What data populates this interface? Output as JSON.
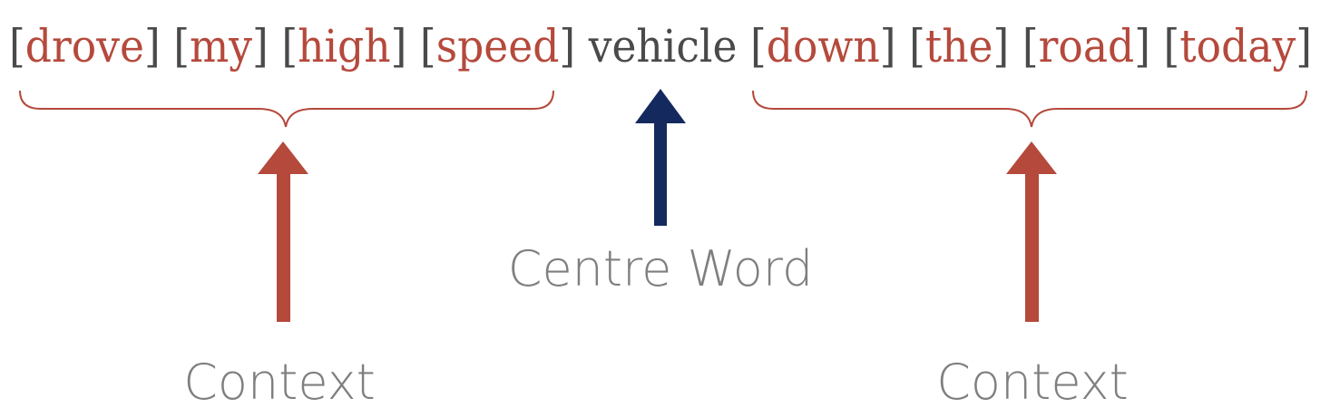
{
  "sentence": {
    "tokens": [
      {
        "text": "drove",
        "role": "context"
      },
      {
        "text": "my",
        "role": "context"
      },
      {
        "text": "high",
        "role": "context"
      },
      {
        "text": "speed",
        "role": "context"
      },
      {
        "text": "vehicle",
        "role": "centre"
      },
      {
        "text": "down",
        "role": "context"
      },
      {
        "text": "the",
        "role": "context"
      },
      {
        "text": "road",
        "role": "context"
      },
      {
        "text": "today",
        "role": "context"
      }
    ],
    "bracket_open": "[",
    "bracket_close": "]"
  },
  "labels": {
    "left_context": "Context",
    "centre_word": "Centre Word",
    "right_context": "Context"
  },
  "colors": {
    "context_word": "#b5493c",
    "bracket": "#4a4a4a",
    "centre_word": "#4a4a4a",
    "context_arrow": "#b5493c",
    "centre_arrow": "#14295e",
    "brace": "#b5493c",
    "label": "#7f7f7f"
  }
}
